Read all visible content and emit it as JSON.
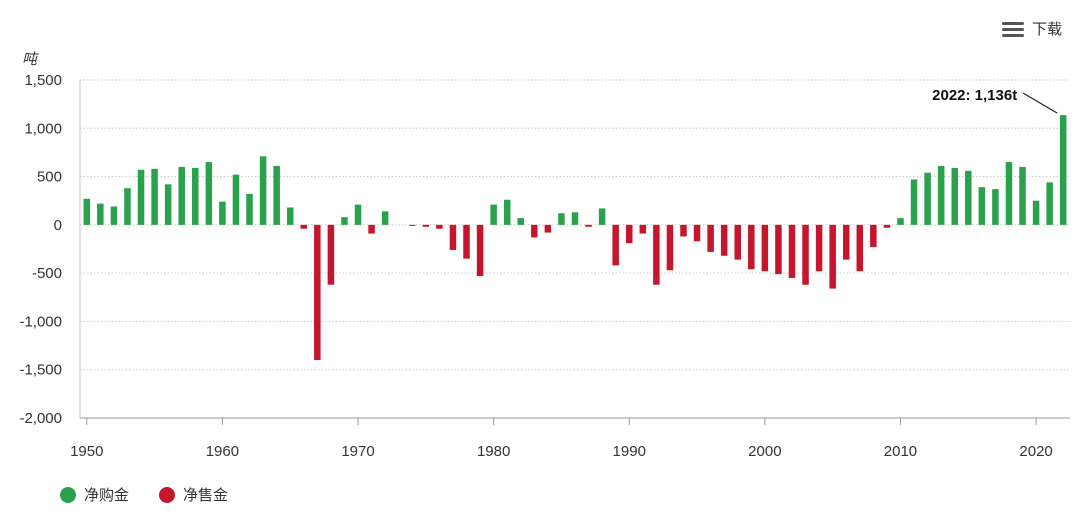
{
  "toolbar": {
    "download_label": "下载",
    "download_icon": "menu-icon"
  },
  "legend": [
    {
      "label": "净购金",
      "color": "#2aa14b"
    },
    {
      "label": "净售金",
      "color": "#c5162e"
    }
  ],
  "chart_data": {
    "type": "bar",
    "ylabel": "吨",
    "xlabel": "",
    "title": "",
    "ylim": [
      -2000,
      1500
    ],
    "yticks": [
      1500,
      1000,
      500,
      0,
      -500,
      -1000,
      -1500,
      -2000
    ],
    "ytick_labels": [
      "1,500",
      "1,000",
      "500",
      "0",
      "-500",
      "-1,000",
      "-1,500",
      "-2,000"
    ],
    "xticks": [
      1950,
      1960,
      1970,
      1980,
      1990,
      2000,
      2010,
      2020
    ],
    "xlim": [
      1949.5,
      2022.5
    ],
    "grid": true,
    "legend_position": "bottom-left",
    "positive_color": "#2aa14b",
    "negative_color": "#c5162e",
    "x": [
      1950,
      1951,
      1952,
      1953,
      1954,
      1955,
      1956,
      1957,
      1958,
      1959,
      1960,
      1961,
      1962,
      1963,
      1964,
      1965,
      1966,
      1967,
      1968,
      1969,
      1970,
      1971,
      1972,
      1973,
      1974,
      1975,
      1976,
      1977,
      1978,
      1979,
      1980,
      1981,
      1982,
      1983,
      1984,
      1985,
      1986,
      1987,
      1988,
      1989,
      1990,
      1991,
      1992,
      1993,
      1994,
      1995,
      1996,
      1997,
      1998,
      1999,
      2000,
      2001,
      2002,
      2003,
      2004,
      2005,
      2006,
      2007,
      2008,
      2009,
      2010,
      2011,
      2012,
      2013,
      2014,
      2015,
      2016,
      2017,
      2018,
      2019,
      2020,
      2021,
      2022
    ],
    "values": [
      270,
      220,
      190,
      380,
      570,
      580,
      420,
      600,
      590,
      650,
      240,
      520,
      320,
      710,
      610,
      180,
      -40,
      -1400,
      -620,
      80,
      210,
      -90,
      140,
      0,
      -10,
      -20,
      -40,
      -260,
      -350,
      -530,
      210,
      260,
      70,
      -130,
      -80,
      120,
      130,
      -20,
      170,
      -420,
      -190,
      -90,
      -620,
      -470,
      -120,
      -170,
      -280,
      -320,
      -360,
      -460,
      -480,
      -510,
      -550,
      -620,
      -480,
      -660,
      -360,
      -480,
      -230,
      -30,
      70,
      470,
      540,
      610,
      590,
      560,
      390,
      370,
      650,
      600,
      250,
      440,
      1136
    ],
    "annotations": [
      {
        "x": 2022,
        "label": "2022: 1,136t"
      }
    ]
  }
}
